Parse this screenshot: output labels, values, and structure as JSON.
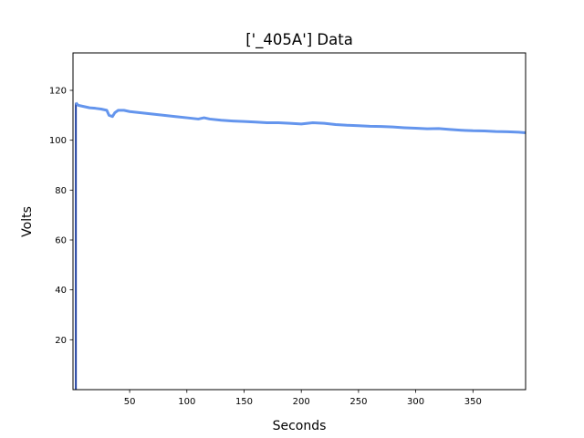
{
  "chart_data": {
    "type": "line",
    "title": "['_405A'] Data",
    "xlabel": "Seconds",
    "ylabel": "Volts",
    "xlim": [
      0.5,
      396
    ],
    "ylim": [
      0,
      135
    ],
    "xticks": [
      50,
      100,
      150,
      200,
      250,
      300,
      350
    ],
    "yticks": [
      20,
      40,
      60,
      80,
      100,
      120
    ],
    "grid": false,
    "line_color": "#6495ED",
    "spike_color": "#1f3fa0",
    "series": [
      {
        "x": [
          2,
          3,
          5,
          10,
          15,
          20,
          25,
          30,
          32,
          35,
          37,
          40,
          45,
          50,
          60,
          70,
          80,
          90,
          100,
          110,
          115,
          120,
          130,
          140,
          150,
          160,
          170,
          180,
          190,
          200,
          210,
          220,
          230,
          240,
          250,
          260,
          270,
          280,
          290,
          300,
          310,
          320,
          330,
          340,
          350,
          360,
          370,
          380,
          390,
          396
        ],
        "y": [
          0,
          115,
          114,
          113.5,
          113,
          112.8,
          112.5,
          112,
          110,
          109.5,
          111,
          112,
          112,
          111.5,
          111,
          110.5,
          110,
          109.5,
          109,
          108.5,
          109,
          108.5,
          108,
          107.7,
          107.5,
          107.3,
          107,
          107,
          106.8,
          106.5,
          107,
          106.8,
          106.3,
          106,
          105.8,
          105.6,
          105.5,
          105.3,
          105,
          104.8,
          104.6,
          104.7,
          104.3,
          104,
          103.8,
          103.7,
          103.5,
          103.4,
          103.2,
          103
        ]
      }
    ]
  }
}
